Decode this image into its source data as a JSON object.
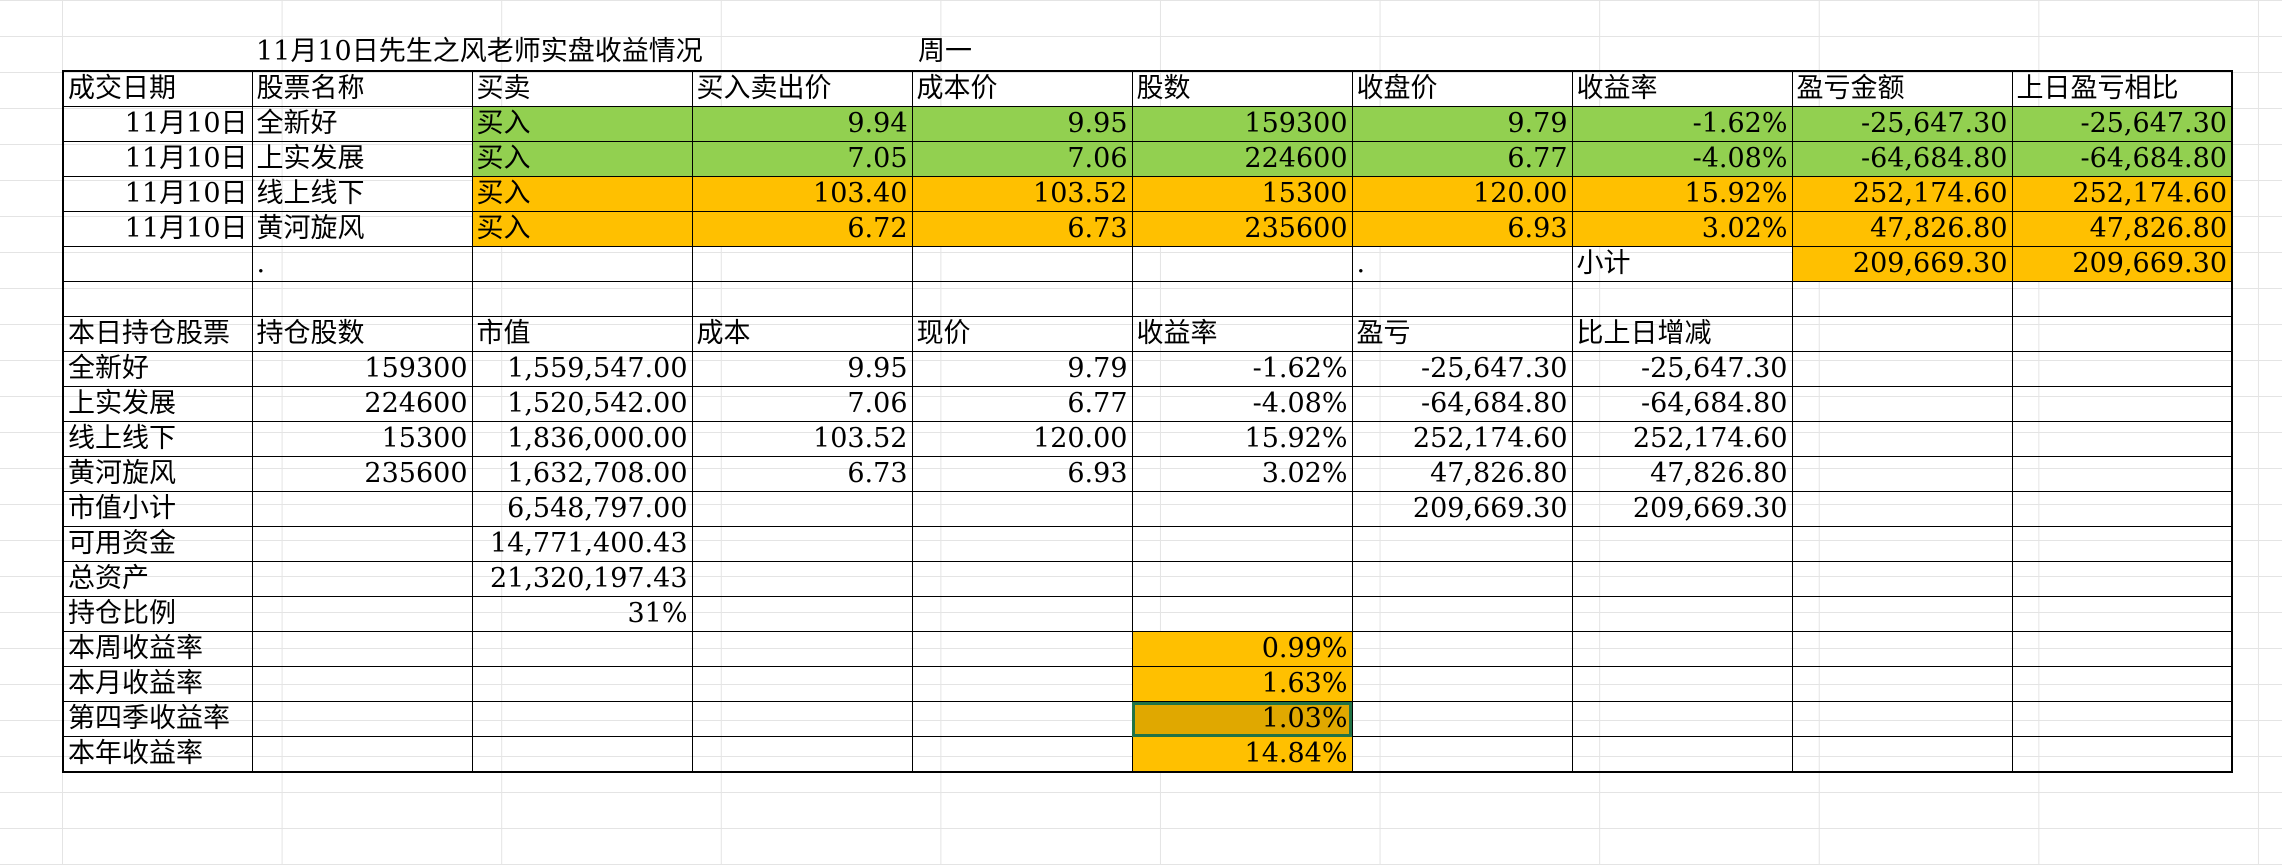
{
  "title": "11月10日先生之风老师实盘收益情况",
  "weekday": "周一",
  "trade_headers": [
    "成交日期",
    "股票名称",
    "买卖",
    "买入卖出价",
    "成本价",
    "股数",
    "收盘价",
    "收益率",
    "盈亏金额",
    "上日盈亏相比"
  ],
  "trades": [
    {
      "date": "11月10日",
      "name": "全新好",
      "action": "买入",
      "price": "9.94",
      "cost": "9.95",
      "shares": "159300",
      "close": "9.79",
      "rate": "-1.62%",
      "pnl": "-25,647.30",
      "vs_prev": "-25,647.30"
    },
    {
      "date": "11月10日",
      "name": "上实发展",
      "action": "买入",
      "price": "7.05",
      "cost": "7.06",
      "shares": "224600",
      "close": "6.77",
      "rate": "-4.08%",
      "pnl": "-64,684.80",
      "vs_prev": "-64,684.80"
    },
    {
      "date": "11月10日",
      "name": "线上线下",
      "action": "买入",
      "price": "103.40",
      "cost": "103.52",
      "shares": "15300",
      "close": "120.00",
      "rate": "15.92%",
      "pnl": "252,174.60",
      "vs_prev": "252,174.60"
    },
    {
      "date": "11月10日",
      "name": "黄河旋风",
      "action": "买入",
      "price": "6.72",
      "cost": "6.73",
      "shares": "235600",
      "close": "6.93",
      "rate": "3.02%",
      "pnl": "47,826.80",
      "vs_prev": "47,826.80"
    }
  ],
  "subtotal_row": {
    "dot1": ".",
    "dot2": ".",
    "label": "小计",
    "pnl": "209,669.30",
    "vs_prev": "209,669.30"
  },
  "holding_headers": [
    "本日持仓股票",
    "持仓股数",
    "市值",
    "成本",
    "现价",
    "收益率",
    "盈亏",
    "比上日增减"
  ],
  "holdings": [
    {
      "name": "全新好",
      "shares": "159300",
      "value": "1,559,547.00",
      "cost": "9.95",
      "price": "9.79",
      "rate": "-1.62%",
      "pnl": "-25,647.30",
      "delta": "-25,647.30"
    },
    {
      "name": "上实发展",
      "shares": "224600",
      "value": "1,520,542.00",
      "cost": "7.06",
      "price": "6.77",
      "rate": "-4.08%",
      "pnl": "-64,684.80",
      "delta": "-64,684.80"
    },
    {
      "name": "线上线下",
      "shares": "15300",
      "value": "1,836,000.00",
      "cost": "103.52",
      "price": "120.00",
      "rate": "15.92%",
      "pnl": "252,174.60",
      "delta": "252,174.60"
    },
    {
      "name": "黄河旋风",
      "shares": "235600",
      "value": "1,632,708.00",
      "cost": "6.73",
      "price": "6.93",
      "rate": "3.02%",
      "pnl": "47,826.80",
      "delta": "47,826.80"
    }
  ],
  "summary": {
    "market_subtotal_label": "市值小计",
    "market_subtotal": "6,548,797.00",
    "pnl_total": "209,669.30",
    "delta_total": "209,669.30",
    "cash_label": "可用资金",
    "cash": "14,771,400.43",
    "assets_label": "总资产",
    "assets": "21,320,197.43",
    "ratio_label": "持仓比例",
    "ratio": "31%"
  },
  "returns": [
    {
      "label": "本周收益率",
      "value": "0.99%"
    },
    {
      "label": "本月收益率",
      "value": "1.63%"
    },
    {
      "label": "第四季收益率",
      "value": "1.03%"
    },
    {
      "label": "本年收益率",
      "value": "14.84%"
    }
  ],
  "colors": {
    "green": "#92d050",
    "orange": "#ffc000",
    "selected_cell": "#e0a800",
    "selection_border": "#217346"
  }
}
